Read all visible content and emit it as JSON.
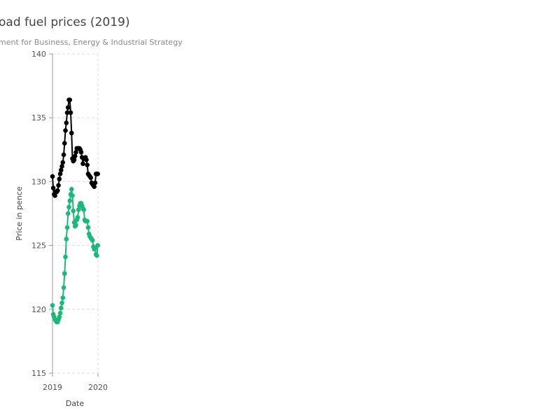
{
  "chart_data": {
    "type": "line",
    "title": "oad fuel prices (2019)",
    "subtitle": "ment for Business, Energy & Industrial Strategy",
    "xlabel": "Date",
    "ylabel": "Price in pence",
    "xlim": [
      "2019-01-01",
      "2020-01-01"
    ],
    "ylim": [
      115,
      140
    ],
    "x_ticks": [
      "2019",
      "2020"
    ],
    "y_ticks": [
      115,
      120,
      125,
      130,
      135,
      140
    ],
    "grid": true,
    "series": [
      {
        "color": "#000000",
        "x": [
          "2019-01-01",
          "2019-01-07",
          "2019-01-14",
          "2019-01-21",
          "2019-01-28",
          "2019-02-04",
          "2019-02-11",
          "2019-02-18",
          "2019-02-25",
          "2019-03-04",
          "2019-03-11",
          "2019-03-18",
          "2019-03-25",
          "2019-04-01",
          "2019-04-08",
          "2019-04-15",
          "2019-04-22",
          "2019-04-29",
          "2019-05-06",
          "2019-05-13",
          "2019-05-20",
          "2019-05-27",
          "2019-06-03",
          "2019-06-10",
          "2019-06-17",
          "2019-06-24",
          "2019-07-01",
          "2019-07-08",
          "2019-07-15",
          "2019-07-22",
          "2019-07-29",
          "2019-08-05",
          "2019-08-12",
          "2019-08-19",
          "2019-08-26",
          "2019-09-02",
          "2019-09-09",
          "2019-09-16",
          "2019-09-23",
          "2019-09-30",
          "2019-10-07",
          "2019-10-14",
          "2019-10-21",
          "2019-10-28",
          "2019-11-04",
          "2019-11-11",
          "2019-11-18",
          "2019-11-25",
          "2019-12-02",
          "2019-12-09",
          "2019-12-16",
          "2019-12-23",
          "2019-12-30"
        ],
        "values": [
          130.4,
          129.5,
          129.0,
          128.9,
          129.2,
          129.2,
          129.3,
          129.7,
          130.2,
          130.6,
          130.9,
          131.2,
          131.5,
          132.1,
          133.0,
          134.0,
          134.6,
          135.4,
          135.8,
          136.4,
          136.4,
          135.4,
          133.8,
          131.8,
          131.6,
          131.7,
          132.0,
          132.3,
          132.6,
          132.6,
          132.6,
          132.6,
          132.5,
          132.3,
          131.9,
          131.4,
          131.8,
          131.8,
          131.9,
          131.7,
          131.3,
          130.6,
          130.5,
          130.4,
          130.3,
          129.9,
          129.8,
          129.7,
          129.6,
          129.9,
          130.6,
          130.6,
          130.6
        ]
      },
      {
        "color": "#1ab97a",
        "x": [
          "2019-01-01",
          "2019-01-07",
          "2019-01-14",
          "2019-01-21",
          "2019-01-28",
          "2019-02-04",
          "2019-02-11",
          "2019-02-18",
          "2019-02-25",
          "2019-03-04",
          "2019-03-11",
          "2019-03-18",
          "2019-03-25",
          "2019-04-01",
          "2019-04-08",
          "2019-04-15",
          "2019-04-22",
          "2019-04-29",
          "2019-05-06",
          "2019-05-13",
          "2019-05-20",
          "2019-05-27",
          "2019-06-03",
          "2019-06-10",
          "2019-06-17",
          "2019-06-24",
          "2019-07-01",
          "2019-07-08",
          "2019-07-15",
          "2019-07-22",
          "2019-07-29",
          "2019-08-05",
          "2019-08-12",
          "2019-08-19",
          "2019-08-26",
          "2019-09-02",
          "2019-09-09",
          "2019-09-16",
          "2019-09-23",
          "2019-09-30",
          "2019-10-07",
          "2019-10-14",
          "2019-10-21",
          "2019-10-28",
          "2019-11-04",
          "2019-11-11",
          "2019-11-18",
          "2019-11-25",
          "2019-12-02",
          "2019-12-09",
          "2019-12-16",
          "2019-12-23",
          "2019-12-30"
        ],
        "values": [
          120.3,
          119.6,
          119.4,
          119.2,
          119.1,
          119.0,
          119.0,
          119.2,
          119.4,
          119.7,
          120.1,
          120.5,
          120.9,
          121.7,
          122.8,
          124.1,
          125.5,
          126.4,
          127.5,
          128.0,
          128.5,
          129.0,
          129.4,
          128.9,
          127.7,
          126.8,
          126.5,
          126.6,
          127.0,
          127.2,
          127.8,
          128.1,
          128.3,
          128.3,
          128.1,
          127.9,
          127.8,
          127.0,
          126.9,
          126.9,
          126.9,
          126.4,
          125.9,
          125.7,
          125.6,
          125.5,
          125.4,
          124.9,
          124.7,
          124.8,
          124.3,
          124.2,
          125.0
        ]
      }
    ]
  }
}
